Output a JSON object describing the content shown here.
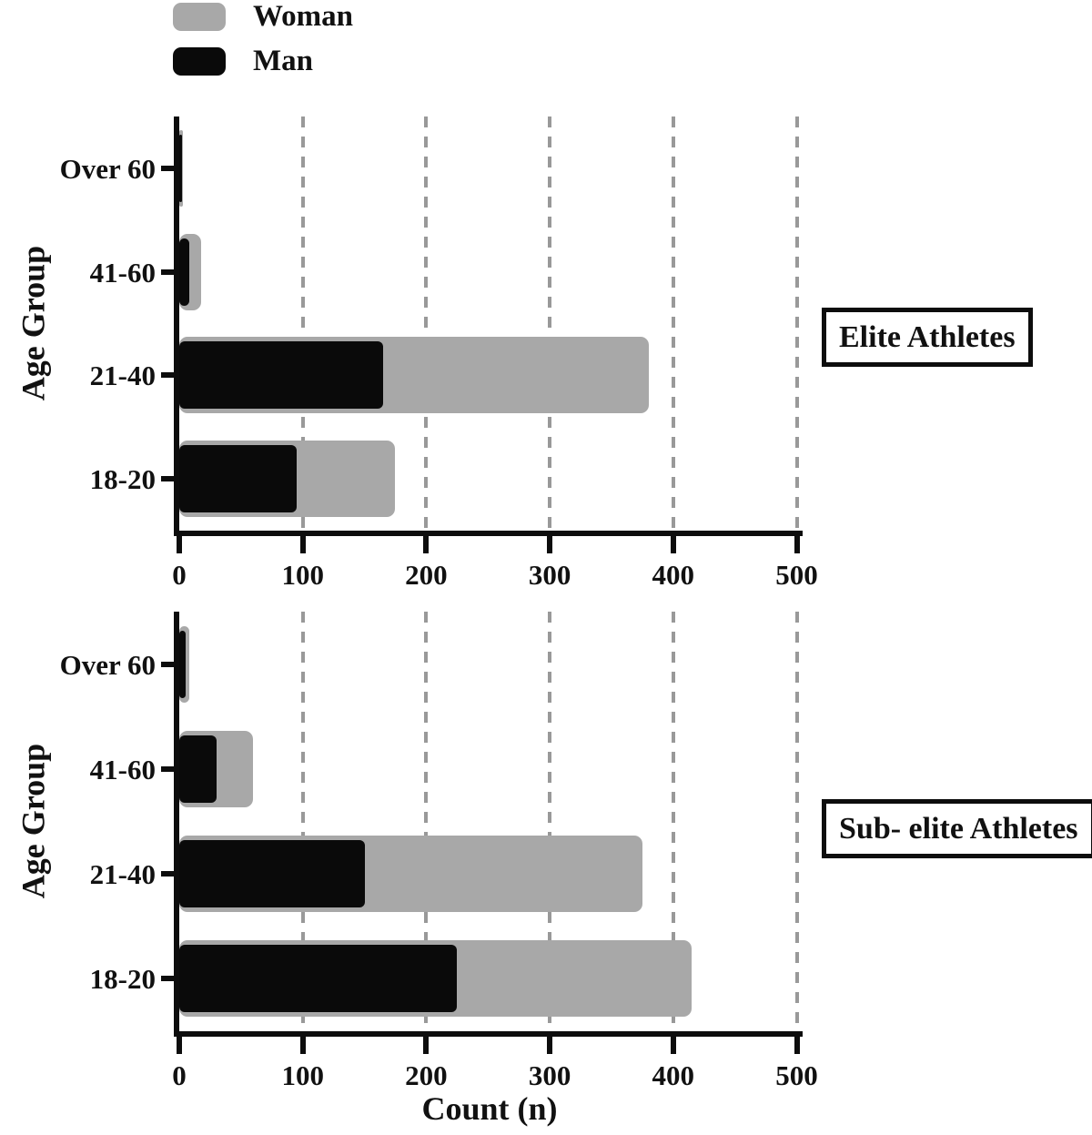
{
  "figure": {
    "xlabel": "Count (n)",
    "ylabel": "Age Group",
    "legend": [
      {
        "label": "Woman",
        "color": "#a8a8a8"
      },
      {
        "label": "Man",
        "color": "#0a0a0a"
      }
    ],
    "colors": {
      "woman_gray": "#a8a8a8",
      "man_black": "#0a0a0a",
      "axis_black": "#0d0d0d",
      "gridline_gray": "#999999"
    }
  },
  "chart_data": [
    {
      "type": "bar",
      "orientation": "horizontal",
      "stacked": true,
      "title": "Elite Athletes",
      "categories": [
        "Over 60",
        "41-60",
        "21-40",
        "18-20"
      ],
      "series": [
        {
          "name": "Man",
          "color": "#0a0a0a",
          "values": [
            2,
            8,
            165,
            95
          ]
        },
        {
          "name": "Woman",
          "color": "#a8a8a8",
          "values": [
            1,
            10,
            215,
            80
          ]
        }
      ],
      "stack_totals": [
        3,
        18,
        380,
        175
      ],
      "xlim": [
        0,
        500
      ],
      "xticks": [
        "0",
        "100",
        "200",
        "300",
        "400",
        "500"
      ],
      "xlabel": "Count (n)",
      "ylabel": "Age Group",
      "grid": "vertical-dashed",
      "legend_position": "top-left"
    },
    {
      "type": "bar",
      "orientation": "horizontal",
      "stacked": true,
      "title": "Sub- elite Athletes",
      "categories": [
        "Over 60",
        "41-60",
        "21-40",
        "18-20"
      ],
      "series": [
        {
          "name": "Man",
          "color": "#0a0a0a",
          "values": [
            5,
            30,
            150,
            225
          ]
        },
        {
          "name": "Woman",
          "color": "#a8a8a8",
          "values": [
            3,
            30,
            225,
            190
          ]
        }
      ],
      "stack_totals": [
        8,
        60,
        375,
        415
      ],
      "xlim": [
        0,
        500
      ],
      "xticks": [
        "0",
        "100",
        "200",
        "300",
        "400",
        "500"
      ],
      "xlabel": "Count (n)",
      "ylabel": "Age Group",
      "grid": "vertical-dashed",
      "legend_position": "none"
    }
  ]
}
